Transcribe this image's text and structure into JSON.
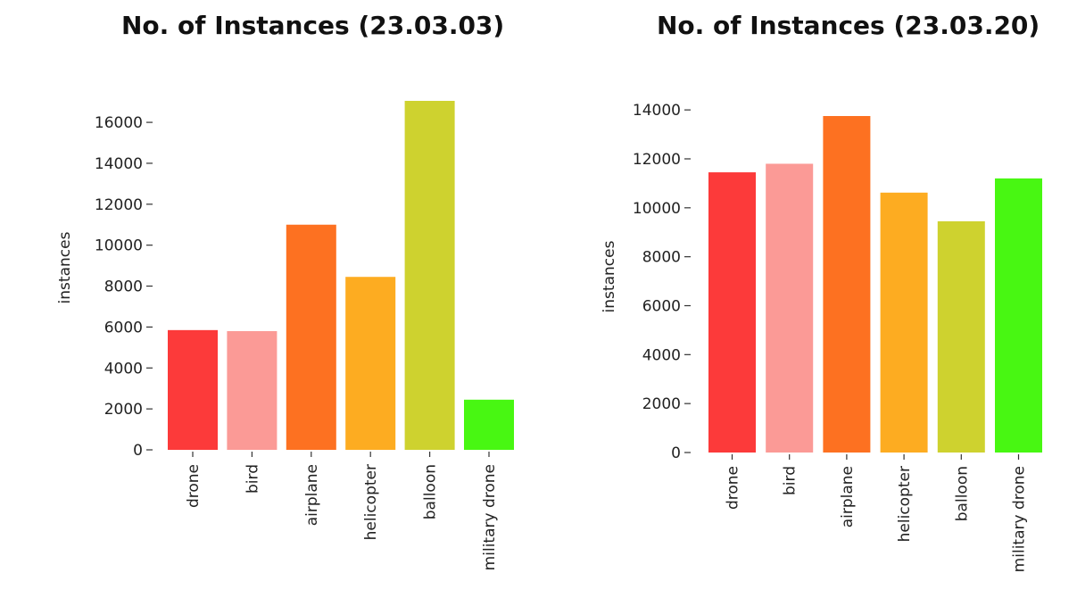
{
  "chart_data": [
    {
      "type": "bar",
      "title": "No. of Instances (23.03.03)",
      "xlabel": "",
      "ylabel": "instances",
      "categories": [
        "drone",
        "bird",
        "airplane",
        "helicopter",
        "balloon",
        "military drone"
      ],
      "values": [
        5850,
        5800,
        11000,
        8450,
        17050,
        2450
      ],
      "colors": [
        "#fc3a3a",
        "#fb9a96",
        "#fd7121",
        "#fdac21",
        "#ced22f",
        "#48f712"
      ],
      "ylim": [
        0,
        17050
      ],
      "yticks": [
        0,
        2000,
        4000,
        6000,
        8000,
        10000,
        12000,
        14000,
        16000
      ],
      "grid": false
    },
    {
      "type": "bar",
      "title": "No. of Instances (23.03.20)",
      "xlabel": "",
      "ylabel": "instances",
      "categories": [
        "drone",
        "bird",
        "airplane",
        "helicopter",
        "balloon",
        "military drone"
      ],
      "values": [
        11450,
        11800,
        13750,
        10620,
        9450,
        11200
      ],
      "colors": [
        "#fc3a3a",
        "#fb9a96",
        "#fd7121",
        "#fdac21",
        "#ced22f",
        "#48f712"
      ],
      "ylim": [
        0,
        13750
      ],
      "yticks": [
        0,
        2000,
        4000,
        6000,
        8000,
        10000,
        12000,
        14000
      ],
      "grid": false
    }
  ]
}
